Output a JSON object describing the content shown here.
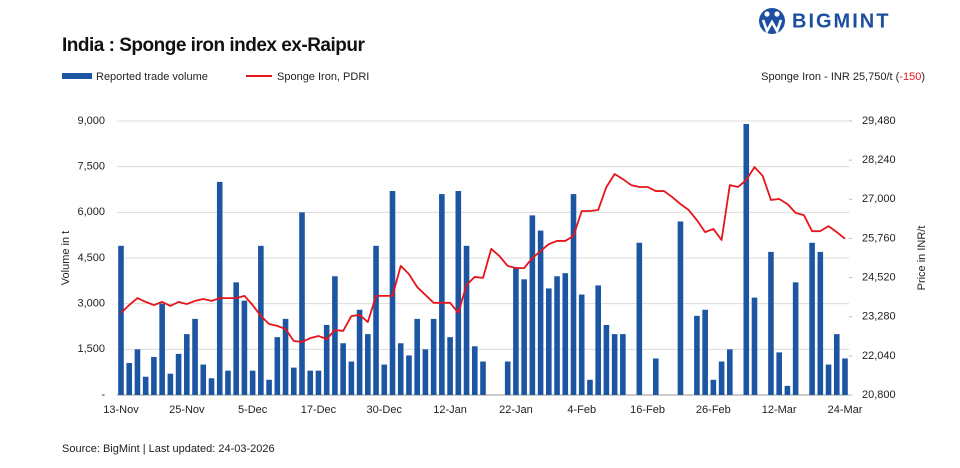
{
  "chart_data": {
    "type": "bar_line",
    "title": "India : Sponge iron index ex-Raipur",
    "brand": "BIGMINT",
    "source": "Source: BigMint | Last updated: 24-03-2026",
    "annotation": {
      "label": "Sponge Iron - INR 25,750/t (",
      "change": "-150",
      "close": ")",
      "change_color": "#e8141b"
    },
    "y_label": "Volume in t",
    "y2_label": "Price in INR/t",
    "categories": [
      "13-Nov",
      null,
      null,
      null,
      null,
      null,
      null,
      null,
      "25-Nov",
      null,
      null,
      null,
      null,
      null,
      null,
      null,
      "5-Dec",
      null,
      null,
      null,
      null,
      null,
      null,
      null,
      "17-Dec",
      null,
      null,
      null,
      null,
      null,
      null,
      null,
      "30-Dec",
      null,
      null,
      null,
      null,
      null,
      null,
      null,
      "12-Jan",
      null,
      null,
      null,
      null,
      null,
      null,
      null,
      "22-Jan",
      null,
      null,
      null,
      null,
      null,
      null,
      null,
      "4-Feb",
      null,
      null,
      null,
      null,
      null,
      null,
      null,
      "16-Feb",
      null,
      null,
      null,
      null,
      null,
      null,
      null,
      "26-Feb",
      null,
      null,
      null,
      null,
      null,
      null,
      null,
      "12-Mar",
      null,
      null,
      null,
      null,
      null,
      null,
      null,
      "24-Mar"
    ],
    "series": [
      {
        "name": "Reported trade volume",
        "type": "bar",
        "color": "#1c56a3",
        "values": [
          4900,
          1050,
          1500,
          600,
          1250,
          3000,
          700,
          1350,
          2000,
          2500,
          1000,
          550,
          7000,
          800,
          3700,
          3100,
          800,
          4900,
          500,
          1900,
          2500,
          900,
          6000,
          800,
          800,
          2300,
          3900,
          1700,
          1100,
          2800,
          2000,
          4900,
          1000,
          6700,
          1700,
          1300,
          2500,
          1500,
          2500,
          6600,
          1900,
          6700,
          4900,
          1600,
          1100,
          0,
          0,
          1100,
          4200,
          3800,
          5900,
          5400,
          3500,
          3900,
          4000,
          6600,
          3300,
          500,
          3600,
          2300,
          2000,
          2000,
          0,
          5000,
          0,
          1200,
          0,
          0,
          5700,
          0,
          2600,
          2800,
          500,
          1100,
          1500,
          0,
          8900,
          3200,
          0,
          4700,
          1400,
          300,
          3700,
          0,
          5000,
          4700,
          1000,
          2000,
          1200
        ]
      },
      {
        "name": "Sponge Iron, PDRI",
        "type": "line",
        "axis": "y2",
        "color": "#e8141b",
        "values": [
          23400,
          23650,
          23870,
          23750,
          23650,
          23750,
          23620,
          23750,
          23680,
          23780,
          23840,
          23780,
          23870,
          23870,
          23870,
          23940,
          23650,
          23300,
          23050,
          22990,
          22890,
          22510,
          22480,
          22600,
          22670,
          22570,
          22860,
          22830,
          23300,
          23340,
          23110,
          23940,
          23940,
          23940,
          24890,
          24630,
          24220,
          23970,
          23720,
          23720,
          23720,
          23400,
          24290,
          24540,
          24510,
          25430,
          25200,
          24890,
          24820,
          24820,
          25140,
          25360,
          25580,
          25680,
          25680,
          25840,
          26630,
          26630,
          26660,
          27390,
          27800,
          27640,
          27450,
          27390,
          27390,
          27260,
          27260,
          27070,
          26850,
          26660,
          26340,
          25960,
          26060,
          25710,
          27450,
          27390,
          27610,
          28020,
          27740,
          26980,
          27010,
          26850,
          26570,
          26500,
          25990,
          25990,
          26150,
          25960,
          25750
        ]
      }
    ],
    "ylim": [
      0,
      9000
    ],
    "yticks": [
      {
        "value": 0,
        "label": "-"
      },
      {
        "value": 1500,
        "label": "1,500"
      },
      {
        "value": 3000,
        "label": "3,000"
      },
      {
        "value": 4500,
        "label": "4,500"
      },
      {
        "value": 6000,
        "label": "6,000"
      },
      {
        "value": 7500,
        "label": "7,500"
      },
      {
        "value": 9000,
        "label": "9,000"
      }
    ],
    "y2lim": [
      20800,
      29480
    ],
    "y2ticks": [
      {
        "value": 20800,
        "label": "20,800"
      },
      {
        "value": 22040,
        "label": "22,040"
      },
      {
        "value": 23280,
        "label": "23,280"
      },
      {
        "value": 24520,
        "label": "24,520"
      },
      {
        "value": 25760,
        "label": "25,760"
      },
      {
        "value": 27000,
        "label": "27,000"
      },
      {
        "value": 28240,
        "label": "28,240"
      },
      {
        "value": 29480,
        "label": "29,480"
      }
    ],
    "grid": true
  }
}
